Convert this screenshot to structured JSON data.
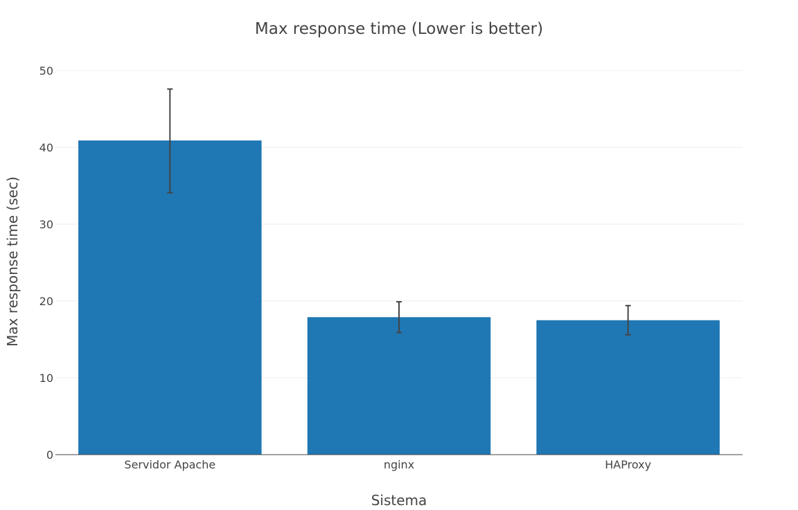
{
  "colors": {
    "bar": "#1f77b4",
    "grid": "#eeeeee",
    "axis_line": "#444444",
    "error_bar": "#444444",
    "text": "#444444"
  },
  "chart_data": {
    "type": "bar",
    "title": "Max response time (Lower is better)",
    "xlabel": "Sistema",
    "ylabel": "Max response time (sec)",
    "categories": [
      "Servidor Apache",
      "nginx",
      "HAProxy"
    ],
    "values": [
      40.9,
      17.9,
      17.5
    ],
    "error_low": [
      34.1,
      15.9,
      15.6
    ],
    "error_high": [
      47.6,
      19.9,
      19.4
    ],
    "ylim": [
      0,
      50
    ],
    "yticks": [
      0,
      10,
      20,
      30,
      40,
      50
    ],
    "grid": true
  }
}
